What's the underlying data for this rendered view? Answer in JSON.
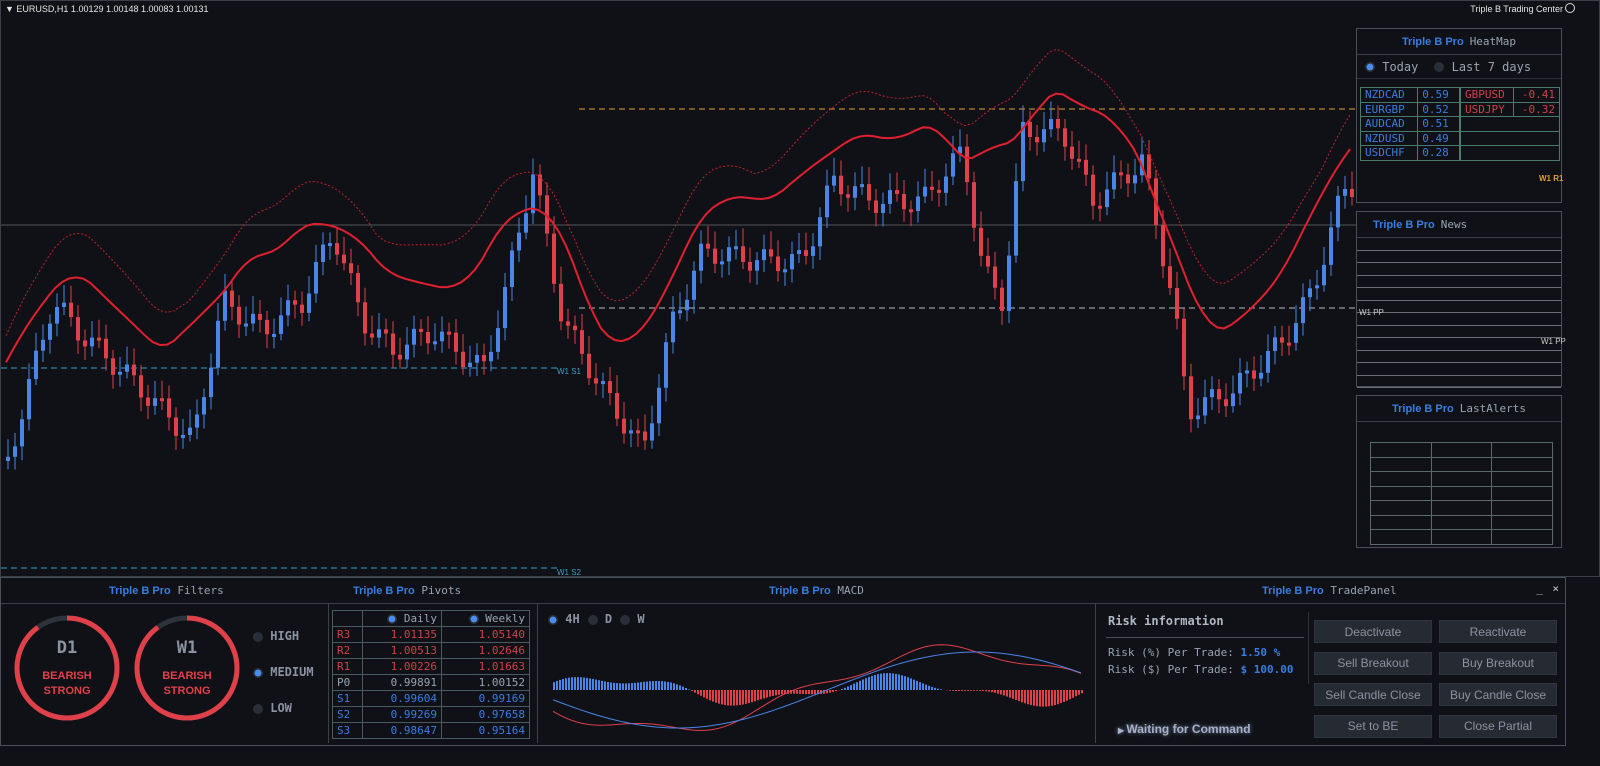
{
  "header": {
    "symbol": "EURUSD,H1  1.00129 1.00148 1.00083 1.00131",
    "brand": "Triple B Trading Center"
  },
  "levels": {
    "w1_r1": "W1 R1",
    "w1_pp": "W1 PP",
    "w1_s1": "W1 S1",
    "w1_s2": "W1 S2"
  },
  "colors": {
    "bull": "#4a86e8",
    "bear": "#e0404a",
    "accent": "#3a7de0"
  },
  "heatmap": {
    "brand": "Triple B Pro",
    "title": "HeatMap",
    "options": [
      "Today",
      "Last 7 days"
    ],
    "selected": "Today",
    "positive": [
      [
        "NZDCAD",
        "0.59"
      ],
      [
        "EURGBP",
        "0.52"
      ],
      [
        "AUDCAD",
        "0.51"
      ],
      [
        "NZDUSD",
        "0.49"
      ],
      [
        "USDCHF",
        "0.28"
      ]
    ],
    "negative": [
      [
        "GBPUSD",
        "-0.41"
      ],
      [
        "USDJPY",
        "-0.32"
      ]
    ]
  },
  "news": {
    "brand": "Triple B Pro",
    "title": "News"
  },
  "alerts": {
    "brand": "Triple B Pro",
    "title": "LastAlerts"
  },
  "filters": {
    "brand": "Triple B Pro",
    "title": "Filters",
    "gauges": [
      {
        "tf": "D1",
        "line1": "BEARISH",
        "line2": "STRONG",
        "level": 0.9
      },
      {
        "tf": "W1",
        "line1": "BEARISH",
        "line2": "STRONG",
        "level": 0.9
      }
    ],
    "options": [
      "HIGH",
      "MEDIUM",
      "LOW"
    ],
    "selected": "MEDIUM"
  },
  "pivots": {
    "brand": "Triple B Pro",
    "title": "Pivots",
    "cols": [
      "Daily",
      "Weekly"
    ],
    "rows": [
      [
        "R3",
        "1.01135",
        "1.05140"
      ],
      [
        "R2",
        "1.00513",
        "1.02646"
      ],
      [
        "R1",
        "1.00226",
        "1.01663"
      ],
      [
        "P0",
        "0.99891",
        "1.00152"
      ],
      [
        "S1",
        "0.99604",
        "0.99169"
      ],
      [
        "S2",
        "0.99269",
        "0.97658"
      ],
      [
        "S3",
        "0.98647",
        "0.95164"
      ]
    ]
  },
  "macd": {
    "brand": "Triple B Pro",
    "title": "MACD",
    "timeframes": [
      "4H",
      "D",
      "W"
    ],
    "selected": "4H"
  },
  "trade": {
    "brand": "Triple B Pro",
    "title": "TradePanel",
    "risk_title": "Risk information",
    "risk_pct_label": "Risk (%) Per Trade:",
    "risk_pct": "1.50 %",
    "risk_usd_label": "Risk ($) Per Trade:",
    "risk_usd": "$ 100.00",
    "status": "Waiting for Command",
    "buttons": [
      "Deactivate",
      "Reactivate",
      "Sell Breakout",
      "Buy Breakout",
      "Sell Candle Close",
      "Buy Candle Close",
      "Set to BE",
      "Close Partial"
    ],
    "minimize": "_",
    "close": "×"
  }
}
